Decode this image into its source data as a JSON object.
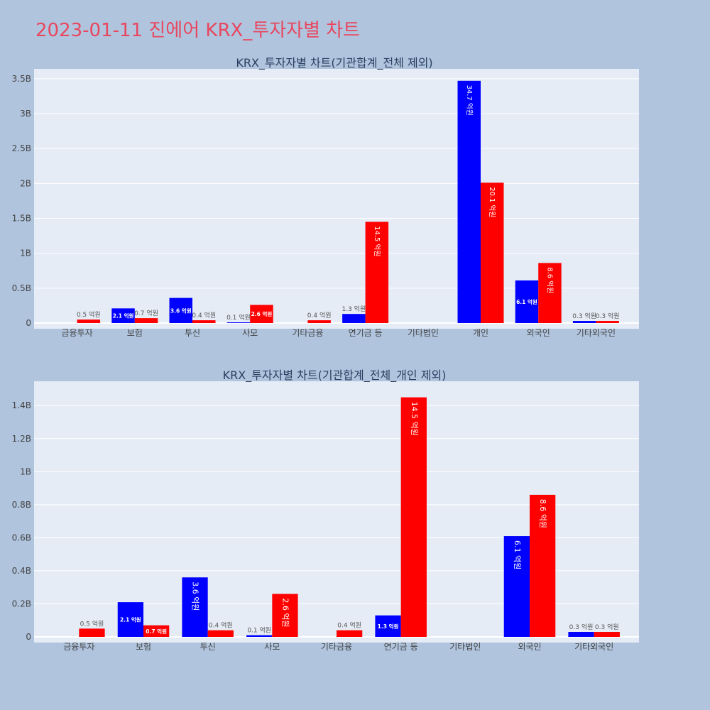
{
  "page": {
    "title": "2023-01-11 진에어 KRX_투자자별 차트"
  },
  "colors": {
    "background": "#b0c4de",
    "plot_bg": "#e5ecf6",
    "title": "#e8475f",
    "series_a": "#0000ff",
    "series_b": "#ff0000"
  },
  "chart_data": [
    {
      "type": "bar",
      "title": "KRX_투자자별 차트(기관합계_전체 제외)",
      "categories": [
        "금융투자",
        "보험",
        "투신",
        "사모",
        "기타금융",
        "연기금 등",
        "기타법인",
        "개인",
        "외국인",
        "기타외국인"
      ],
      "series": [
        {
          "color": "#0000ff",
          "values": [
            0,
            210000000,
            360000000,
            10000000,
            0,
            130000000,
            0,
            3470000000,
            610000000,
            30000000
          ],
          "labels": [
            "",
            "2.1 억원",
            "3.6 억원",
            "0.1 억원",
            "",
            "1.3 억원",
            "",
            "34.7 억원",
            "6.1 억원",
            "0.3 억원"
          ]
        },
        {
          "color": "#ff0000",
          "values": [
            50000000,
            70000000,
            40000000,
            260000000,
            40000000,
            1450000000,
            0,
            2010000000,
            860000000,
            30000000
          ],
          "labels": [
            "0.5 억원",
            "0.7 억원",
            "0.4 억원",
            "2.6 억원",
            "0.4 억원",
            "14.5 억원",
            "",
            "20.1 억원",
            "8.6 억원",
            "0.3 억원"
          ]
        }
      ],
      "ylim": [
        0,
        3600000000
      ],
      "yticks": [
        0,
        500000000,
        1000000000,
        1500000000,
        2000000000,
        2500000000,
        3000000000,
        3500000000
      ],
      "ytick_labels": [
        "0",
        "0.5B",
        "1B",
        "1.5B",
        "2B",
        "2.5B",
        "3B",
        "3.5B"
      ],
      "grid": true
    },
    {
      "type": "bar",
      "title": "KRX_투자자별 차트(기관합계_전체_개인 제외)",
      "categories": [
        "금융투자",
        "보험",
        "투신",
        "사모",
        "기타금융",
        "연기금 등",
        "기타법인",
        "외국인",
        "기타외국인"
      ],
      "series": [
        {
          "color": "#0000ff",
          "values": [
            0,
            210000000,
            360000000,
            10000000,
            0,
            130000000,
            0,
            610000000,
            30000000
          ],
          "labels": [
            "",
            "2.1 억원",
            "3.6 억원",
            "0.1 억원",
            "",
            "1.3 억원",
            "",
            "6.1 억원",
            "0.3 억원"
          ]
        },
        {
          "color": "#ff0000",
          "values": [
            50000000,
            70000000,
            40000000,
            260000000,
            40000000,
            1450000000,
            0,
            860000000,
            30000000
          ],
          "labels": [
            "0.5 억원",
            "0.7 억원",
            "0.4 억원",
            "2.6 억원",
            "0.4 억원",
            "14.5 억원",
            "",
            "8.6 억원",
            "0.3 억원"
          ]
        }
      ],
      "ylim": [
        0,
        1530000000
      ],
      "yticks": [
        0,
        200000000,
        400000000,
        600000000,
        800000000,
        1000000000,
        1200000000,
        1400000000
      ],
      "ytick_labels": [
        "0",
        "0.2B",
        "0.4B",
        "0.6B",
        "0.8B",
        "1B",
        "1.2B",
        "1.4B"
      ],
      "grid": true
    }
  ]
}
